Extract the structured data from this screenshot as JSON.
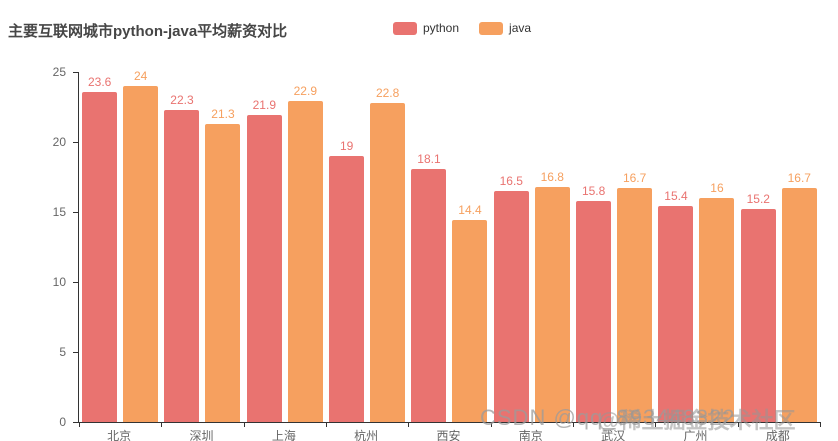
{
  "title": "主要互联网城市python-java平均薪资对比",
  "legend": {
    "items": [
      {
        "label": "python",
        "color": "#e97370"
      },
      {
        "label": "java",
        "color": "#f6a05f"
      }
    ]
  },
  "watermarks": {
    "primary": "CSDN @qq_893448322",
    "secondary": "@稀土掘金技术社区"
  },
  "colors": {
    "python": "#e97370",
    "java": "#f6a05f",
    "axis_line": "#333333",
    "axis_label": "#666666",
    "title_text": "#464646"
  },
  "chart_data": {
    "type": "bar",
    "title": "主要互联网城市python-java平均薪资对比",
    "categories": [
      "北京",
      "深圳",
      "上海",
      "杭州",
      "西安",
      "南京",
      "武汉",
      "广州",
      "成都"
    ],
    "series": [
      {
        "name": "python",
        "color": "#e97370",
        "values": [
          23.6,
          22.3,
          21.9,
          19,
          18.1,
          16.5,
          15.8,
          15.4,
          15.2
        ]
      },
      {
        "name": "java",
        "color": "#f6a05f",
        "values": [
          24,
          21.3,
          22.9,
          22.8,
          14.4,
          16.8,
          16.7,
          16,
          16.7
        ]
      }
    ],
    "xlabel": "",
    "ylabel": "",
    "ylim": [
      0,
      25
    ],
    "yticks": [
      0,
      5,
      10,
      15,
      20,
      25
    ],
    "grid": "off",
    "legend_position": "top-center",
    "value_labels": "on"
  }
}
